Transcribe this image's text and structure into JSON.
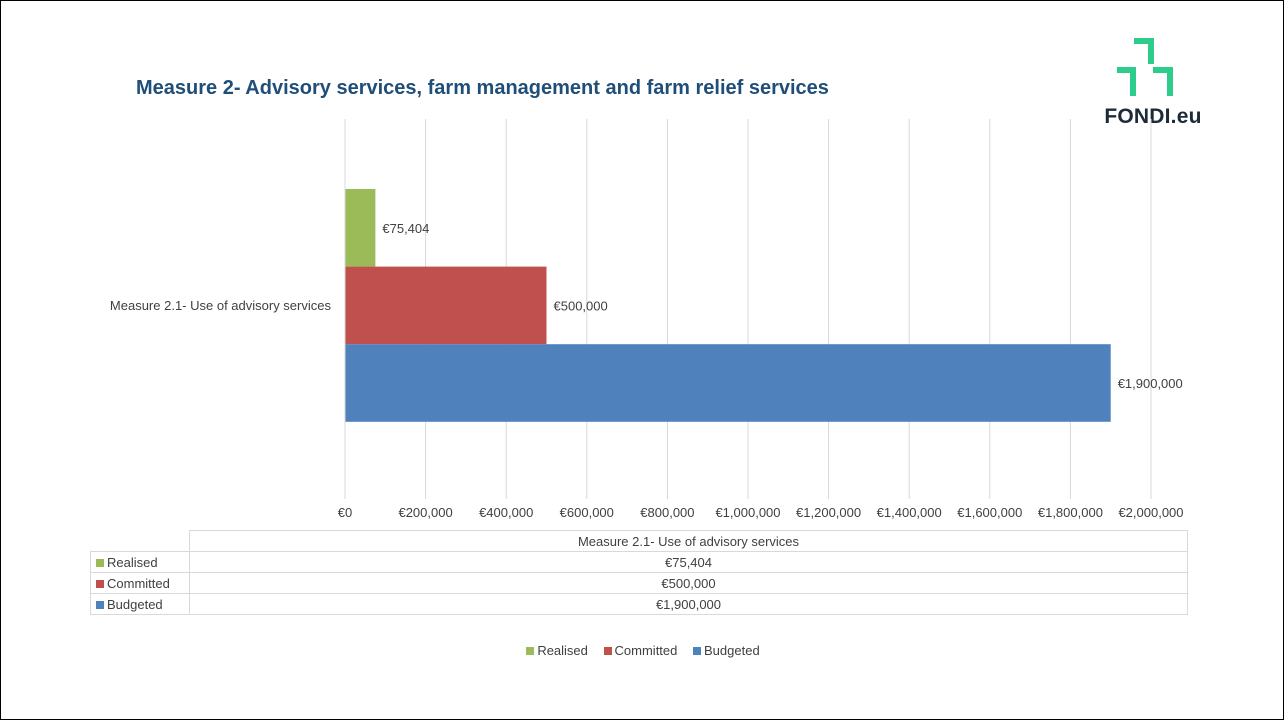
{
  "title": "Measure 2-  Advisory services, farm management and farm relief services",
  "logo": {
    "text": "FONDI.eu",
    "color": "#2ECC8A"
  },
  "chart_data": {
    "type": "bar",
    "orientation": "horizontal",
    "title": "Measure 2-  Advisory services, farm management and farm relief services",
    "categories": [
      "Measure 2.1- Use of advisory services"
    ],
    "series": [
      {
        "name": "Realised",
        "values": [
          75404
        ],
        "color": "#9BBB59",
        "label": "€75,404"
      },
      {
        "name": "Committed",
        "values": [
          500000
        ],
        "color": "#C0504D",
        "label": "€500,000"
      },
      {
        "name": "Budgeted",
        "values": [
          1900000
        ],
        "color": "#4F81BD",
        "label": "€1,900,000"
      }
    ],
    "xlim": [
      0,
      2000000
    ],
    "xticks": [
      0,
      200000,
      400000,
      600000,
      800000,
      1000000,
      1200000,
      1400000,
      1600000,
      1800000,
      2000000
    ],
    "xtick_labels": [
      "€0",
      "€200,000",
      "€400,000",
      "€600,000",
      "€800,000",
      "€1,000,000",
      "€1,200,000",
      "€1,400,000",
      "€1,600,000",
      "€1,800,000",
      "€2,000,000"
    ],
    "grid": true,
    "data_labels": true,
    "legend": "bottom",
    "data_table": true
  },
  "table": {
    "header": "Measure 2.1- Use of advisory services",
    "rows": [
      {
        "name": "Realised",
        "value": "€75,404",
        "color": "#9BBB59"
      },
      {
        "name": "Committed",
        "value": "€500,000",
        "color": "#C0504D"
      },
      {
        "name": "Budgeted",
        "value": "€1,900,000",
        "color": "#4F81BD"
      }
    ]
  },
  "legend": [
    {
      "name": "Realised",
      "color": "#9BBB59"
    },
    {
      "name": "Committed",
      "color": "#C0504D"
    },
    {
      "name": "Budgeted",
      "color": "#4F81BD"
    }
  ]
}
